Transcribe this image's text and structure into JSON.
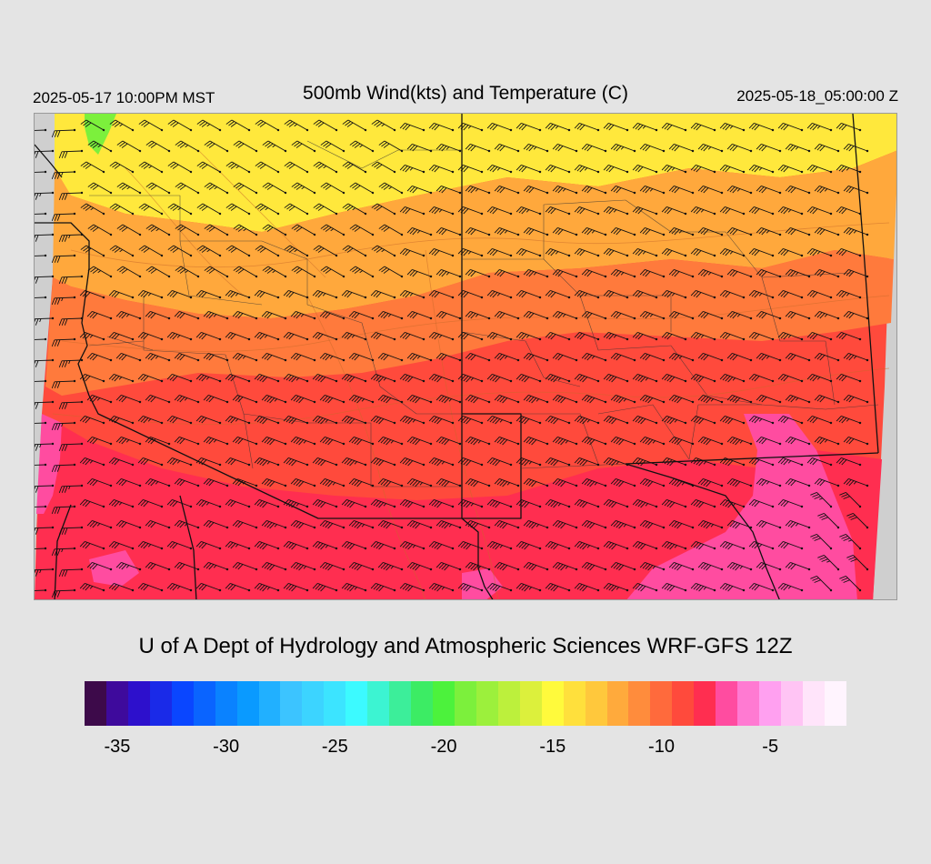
{
  "header": {
    "valid_local": "2025-05-17 10:00PM MST",
    "title": "500mb Wind(kts) and Temperature (C)",
    "valid_utc": "2025-05-18_05:00:00 Z"
  },
  "credit": "U of A Dept of Hydrology and Atmospheric Sciences WRF-GFS 12Z",
  "colorbar": {
    "colors": [
      "#3d0a4a",
      "#3e0a9c",
      "#2d10cc",
      "#1a2ae8",
      "#0a46ff",
      "#0a64ff",
      "#0a82ff",
      "#0a9aff",
      "#21b0ff",
      "#3cc4ff",
      "#3cd4ff",
      "#3ce4ff",
      "#3cfaff",
      "#3cf4d2",
      "#3cee9a",
      "#3cec64",
      "#4cf23c",
      "#7cf03c",
      "#9cf03c",
      "#bcf03c",
      "#dcf03c",
      "#fffa3c",
      "#ffe03c",
      "#ffc83c",
      "#ffaa3c",
      "#ff8c3c",
      "#ff6a3c",
      "#ff4a3c",
      "#ff2e50",
      "#ff4ca0",
      "#ff7ad2",
      "#ffa0f0",
      "#ffc4f4",
      "#ffe4fa",
      "#fff4fe"
    ],
    "ticks": [
      {
        "label": "-35",
        "value": -35
      },
      {
        "label": "-30",
        "value": -30
      },
      {
        "label": "-25",
        "value": -25
      },
      {
        "label": "-20",
        "value": -20
      },
      {
        "label": "-15",
        "value": -15
      },
      {
        "label": "-10",
        "value": -10
      },
      {
        "label": "-5",
        "value": -5
      }
    ],
    "min": -36.5,
    "max": -1.5
  },
  "map": {
    "field_colors": {
      "yellow": "#ffe83c",
      "orange": "#ffa83c",
      "orange_red": "#ff7a3c",
      "red": "#ff4a3c",
      "crimson": "#ff2e50",
      "pink": "#ff4ca0",
      "green": "#7cf03c",
      "missing": "#cfcfcf",
      "boundary": "#111111",
      "barb": "#111111"
    }
  }
}
